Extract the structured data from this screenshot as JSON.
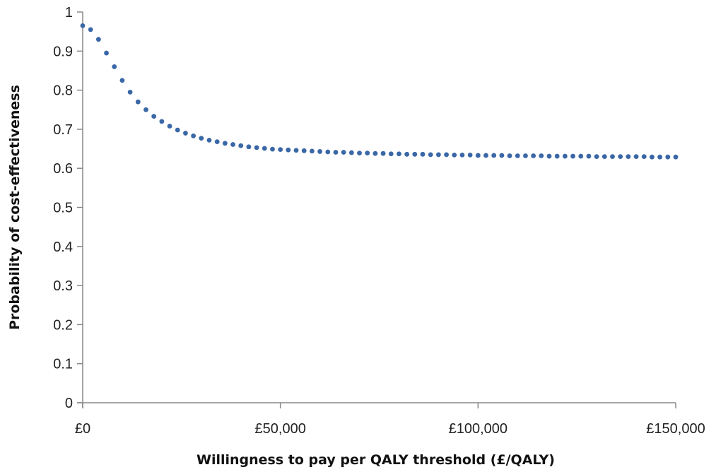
{
  "chart_data": {
    "type": "scatter",
    "title": "",
    "xlabel": "Willingness to pay per QALY threshold (£/QALY)",
    "ylabel": "Probability of cost-effectiveness",
    "xlim": [
      0,
      150000
    ],
    "ylim": [
      0,
      1
    ],
    "x_ticks": [
      0,
      50000,
      100000,
      150000
    ],
    "x_tick_labels": [
      "£0",
      "£50,000",
      "£100,000",
      "£150,000"
    ],
    "y_ticks": [
      0,
      0.1,
      0.2,
      0.3,
      0.4,
      0.5,
      0.6,
      0.7,
      0.8,
      0.9,
      1
    ],
    "y_tick_labels": [
      "0",
      "0.1",
      "0.2",
      "0.3",
      "0.4",
      "0.5",
      "0.6",
      "0.7",
      "0.8",
      "0.9",
      "1"
    ],
    "grid": false,
    "legend": "none",
    "series": [
      {
        "color": "#3a67a6",
        "x": [
          0,
          2000,
          4000,
          6000,
          8000,
          10000,
          12000,
          14000,
          16000,
          18000,
          20000,
          22000,
          24000,
          26000,
          28000,
          30000,
          32000,
          34000,
          36000,
          38000,
          40000,
          42000,
          44000,
          46000,
          48000,
          50000,
          52000,
          54000,
          56000,
          58000,
          60000,
          62000,
          64000,
          66000,
          68000,
          70000,
          72000,
          74000,
          76000,
          78000,
          80000,
          82000,
          84000,
          86000,
          88000,
          90000,
          92000,
          94000,
          96000,
          98000,
          100000,
          102000,
          104000,
          106000,
          108000,
          110000,
          112000,
          114000,
          116000,
          118000,
          120000,
          122000,
          124000,
          126000,
          128000,
          130000,
          132000,
          134000,
          136000,
          138000,
          140000,
          142000,
          144000,
          146000,
          148000,
          150000
        ],
        "values": [
          0.965,
          0.955,
          0.93,
          0.895,
          0.86,
          0.825,
          0.795,
          0.77,
          0.75,
          0.733,
          0.72,
          0.708,
          0.698,
          0.69,
          0.683,
          0.677,
          0.672,
          0.668,
          0.664,
          0.661,
          0.658,
          0.655,
          0.653,
          0.651,
          0.649,
          0.648,
          0.647,
          0.646,
          0.645,
          0.644,
          0.643,
          0.642,
          0.641,
          0.641,
          0.64,
          0.639,
          0.639,
          0.638,
          0.638,
          0.637,
          0.637,
          0.636,
          0.636,
          0.636,
          0.635,
          0.635,
          0.635,
          0.634,
          0.634,
          0.634,
          0.633,
          0.633,
          0.633,
          0.633,
          0.632,
          0.632,
          0.632,
          0.632,
          0.632,
          0.631,
          0.631,
          0.631,
          0.631,
          0.631,
          0.631,
          0.63,
          0.63,
          0.63,
          0.63,
          0.63,
          0.63,
          0.63,
          0.629,
          0.629,
          0.629,
          0.629
        ]
      }
    ]
  }
}
